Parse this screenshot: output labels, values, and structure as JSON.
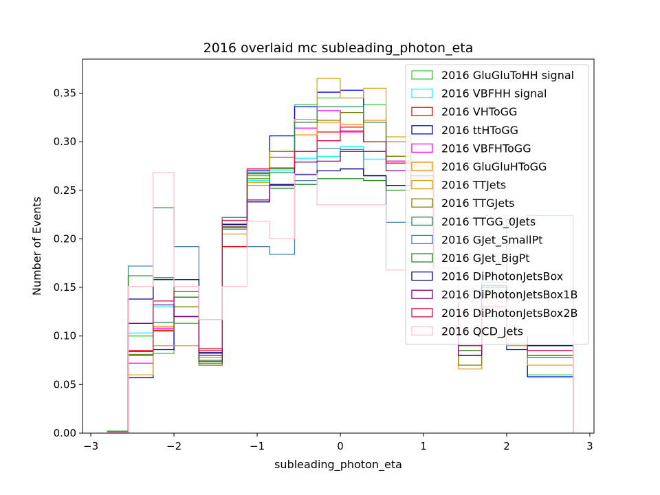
{
  "chart_data": {
    "type": "histogram-step",
    "title": "2016 overlaid mc subleading_photon_eta",
    "xlabel": "subleading_photon_eta",
    "ylabel": "Number of Events",
    "xlim": [
      -3.1,
      3.05
    ],
    "ylim": [
      0,
      0.385
    ],
    "xticks": [
      -3,
      -2,
      -1,
      0,
      1,
      2,
      3
    ],
    "xtick_labels": [
      "−3",
      "−2",
      "−1",
      "0",
      "1",
      "2",
      "3"
    ],
    "yticks": [
      0,
      0.05,
      0.1,
      0.15,
      0.2,
      0.25,
      0.3,
      0.35
    ],
    "ytick_labels": [
      "0.00",
      "0.05",
      "0.10",
      "0.15",
      "0.20",
      "0.25",
      "0.30",
      "0.35"
    ],
    "bin_edges": [
      -2.8,
      -2.55,
      -2.25,
      -2.0,
      -1.7,
      -1.42,
      -1.12,
      -0.85,
      -0.55,
      -0.28,
      0.0,
      0.28,
      0.55,
      0.85,
      1.12,
      1.42,
      1.7,
      2.0,
      2.25,
      2.55,
      2.8
    ],
    "legend_position": "top-right",
    "grid": false,
    "series": [
      {
        "name": "2016 GluGluToHH signal",
        "color": "#32cd32",
        "values": [
          0.002,
          0.1,
          0.082,
          0.113,
          0.075,
          0.21,
          0.265,
          0.272,
          0.338,
          0.345,
          0.345,
          0.338,
          0.285,
          0.27,
          0.17,
          0.08,
          0.12,
          0.09,
          0.06,
          0.06,
          0.001
        ]
      },
      {
        "name": "2016 VBFHH signal",
        "color": "#00ffff",
        "values": [
          0.001,
          0.103,
          0.13,
          0.14,
          0.08,
          0.222,
          0.26,
          0.27,
          0.283,
          0.285,
          0.295,
          0.282,
          0.28,
          0.26,
          0.17,
          0.085,
          0.13,
          0.1,
          0.08,
          0.08,
          0.001
        ]
      },
      {
        "name": "2016 VHToGG",
        "color": "#ff0000",
        "values": [
          0.001,
          0.085,
          0.106,
          0.14,
          0.085,
          0.192,
          0.27,
          0.273,
          0.29,
          0.31,
          0.315,
          0.3,
          0.28,
          0.265,
          0.17,
          0.085,
          0.14,
          0.1,
          0.08,
          0.08,
          0.001
        ]
      },
      {
        "name": "2016 ttHToGG",
        "color": "#0000ff",
        "values": [
          0.001,
          0.057,
          0.086,
          0.12,
          0.08,
          0.215,
          0.27,
          0.306,
          0.336,
          0.351,
          0.353,
          0.3,
          0.3,
          0.27,
          0.17,
          0.08,
          0.15,
          0.086,
          0.058,
          0.058,
          0.001
        ]
      },
      {
        "name": "2016 VBFHToGG",
        "color": "#ff00ff",
        "values": [
          0.001,
          0.072,
          0.108,
          0.14,
          0.08,
          0.215,
          0.272,
          0.284,
          0.314,
          0.332,
          0.31,
          0.3,
          0.28,
          0.265,
          0.17,
          0.08,
          0.13,
          0.1,
          0.085,
          0.085,
          0.001
        ]
      },
      {
        "name": "2016 GluGluHToGG",
        "color": "#ff8c00",
        "values": [
          0.001,
          0.08,
          0.11,
          0.12,
          0.078,
          0.213,
          0.255,
          0.273,
          0.307,
          0.32,
          0.318,
          0.322,
          0.3,
          0.275,
          0.17,
          0.08,
          0.14,
          0.1,
          0.08,
          0.08,
          0.001
        ]
      },
      {
        "name": "2016 TTJets",
        "color": "#daa520",
        "values": [
          0.001,
          0.06,
          0.09,
          0.09,
          0.07,
          0.205,
          0.258,
          0.29,
          0.323,
          0.365,
          0.345,
          0.355,
          0.305,
          0.28,
          0.17,
          0.066,
          0.1,
          0.09,
          0.07,
          0.07,
          0.001
        ]
      },
      {
        "name": "2016 TTGJets",
        "color": "#808000",
        "values": [
          0.001,
          0.081,
          0.105,
          0.13,
          0.07,
          0.213,
          0.262,
          0.29,
          0.32,
          0.322,
          0.33,
          0.3,
          0.285,
          0.27,
          0.17,
          0.07,
          0.13,
          0.1,
          0.08,
          0.08,
          0.001
        ]
      },
      {
        "name": "2016 TTGG_0Jets",
        "color": "#2e8b57",
        "values": [
          0.001,
          0.08,
          0.114,
          0.12,
          0.082,
          0.21,
          0.268,
          0.268,
          0.32,
          0.336,
          0.336,
          0.32,
          0.278,
          0.27,
          0.17,
          0.08,
          0.12,
          0.1,
          0.078,
          0.078,
          0.001
        ]
      },
      {
        "name": "2016 GJet_SmallPt",
        "color": "#4682b4",
        "values": [
          0.001,
          0.172,
          0.232,
          0.192,
          0.117,
          0.222,
          0.192,
          0.184,
          0.26,
          0.293,
          0.292,
          0.265,
          0.217,
          0.215,
          0.17,
          0.135,
          0.155,
          0.22,
          0.224,
          0.224,
          0.001
        ]
      },
      {
        "name": "2016 GJet_BigPt",
        "color": "#228b22",
        "values": [
          0.002,
          0.162,
          0.16,
          0.14,
          0.072,
          0.215,
          0.267,
          0.252,
          0.256,
          0.262,
          0.262,
          0.26,
          0.25,
          0.26,
          0.17,
          0.085,
          0.15,
          0.1,
          0.09,
          0.09,
          0.001
        ]
      },
      {
        "name": "2016 DiPhotonJetsBox",
        "color": "#00008b",
        "values": [
          0.001,
          0.138,
          0.158,
          0.158,
          0.083,
          0.215,
          0.238,
          0.256,
          0.266,
          0.27,
          0.272,
          0.265,
          0.255,
          0.26,
          0.17,
          0.09,
          0.152,
          0.1,
          0.09,
          0.09,
          0.001
        ]
      },
      {
        "name": "2016 DiPhotonJetsBox1B",
        "color": "#800080",
        "values": [
          0.001,
          0.113,
          0.132,
          0.12,
          0.074,
          0.212,
          0.24,
          0.255,
          0.279,
          0.28,
          0.29,
          0.29,
          0.27,
          0.26,
          0.17,
          0.08,
          0.13,
          0.1,
          0.085,
          0.085,
          0.001
        ]
      },
      {
        "name": "2016 DiPhotonJetsBox2B",
        "color": "#dc143c",
        "values": [
          0.001,
          0.084,
          0.136,
          0.146,
          0.087,
          0.219,
          0.272,
          0.273,
          0.29,
          0.301,
          0.311,
          0.3,
          0.278,
          0.265,
          0.17,
          0.09,
          0.13,
          0.1,
          0.085,
          0.085,
          0.001
        ]
      },
      {
        "name": "2016 QCD_Jets",
        "color": "#ffc0cb",
        "values": [
          0.001,
          0.151,
          0.268,
          0.151,
          0.117,
          0.151,
          0.218,
          0.2,
          0.267,
          0.235,
          0.235,
          0.235,
          0.168,
          0.168,
          0.17,
          0.135,
          0.135,
          0.1,
          0.1,
          0.1,
          0.001
        ]
      }
    ]
  }
}
